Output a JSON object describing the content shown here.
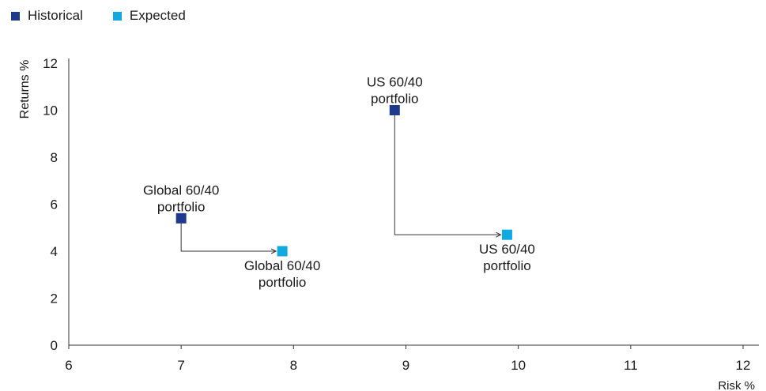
{
  "chart_data": {
    "type": "scatter",
    "xlabel": "Risk %",
    "ylabel": "Returns %",
    "xlim": [
      6,
      12
    ],
    "ylim": [
      0,
      12
    ],
    "xticks": [
      6,
      7,
      8,
      9,
      10,
      11,
      12
    ],
    "yticks": [
      0,
      2,
      4,
      6,
      8,
      10,
      12
    ],
    "grid": false,
    "legend_position": "top-left",
    "series": [
      {
        "name": "Historical",
        "color": "#1f3a8a",
        "points": [
          {
            "x": 7.0,
            "y": 5.4,
            "label": [
              "Global 60/40",
              "portfolio"
            ]
          },
          {
            "x": 8.9,
            "y": 10.0,
            "label": [
              "US 60/40",
              "portfolio"
            ]
          }
        ]
      },
      {
        "name": "Expected",
        "color": "#12a8e0",
        "points": [
          {
            "x": 7.9,
            "y": 4.0,
            "label": [
              "Global 60/40",
              "portfolio"
            ]
          },
          {
            "x": 9.9,
            "y": 4.7,
            "label": [
              "US 60/40",
              "portfolio"
            ]
          }
        ]
      }
    ],
    "arrows": [
      {
        "from": [
          7.0,
          5.4
        ],
        "to": [
          7.9,
          4.0
        ]
      },
      {
        "from": [
          8.9,
          10.0
        ],
        "to": [
          9.9,
          4.7
        ]
      }
    ]
  }
}
